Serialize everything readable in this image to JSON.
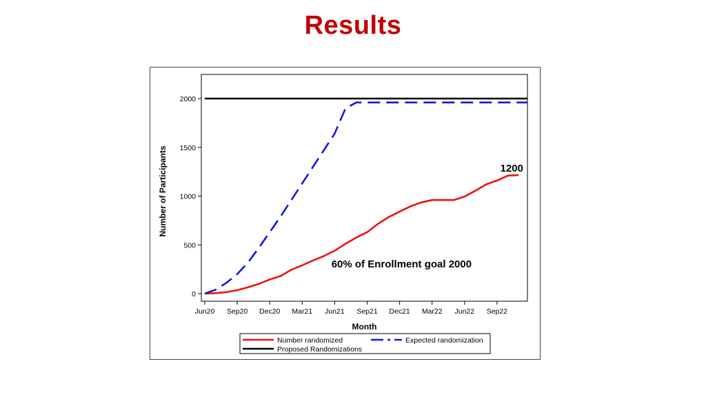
{
  "slide": {
    "title": "Results"
  },
  "chart_data": {
    "type": "line",
    "xlabel": "Month",
    "ylabel": "Number of Participants",
    "ylim": [
      0,
      2200
    ],
    "yticks": [
      0,
      500,
      1000,
      1500,
      2000
    ],
    "xticks": [
      "Jun20",
      "Sep20",
      "Dec20",
      "Mar21",
      "Jun21",
      "Sep21",
      "Dec21",
      "Mar22",
      "Jun22",
      "Sep22"
    ],
    "xlim_months": [
      0,
      30
    ],
    "grid": false,
    "legend_position": "bottom",
    "series": [
      {
        "name": "Number randomized",
        "color": "#ee1111",
        "style": "solid",
        "points": [
          [
            0,
            0
          ],
          [
            1,
            5
          ],
          [
            2,
            15
          ],
          [
            3,
            35
          ],
          [
            4,
            65
          ],
          [
            5,
            100
          ],
          [
            6,
            145
          ],
          [
            7,
            180
          ],
          [
            8,
            245
          ],
          [
            9,
            290
          ],
          [
            10,
            340
          ],
          [
            11,
            385
          ],
          [
            12,
            440
          ],
          [
            13,
            510
          ],
          [
            14,
            575
          ],
          [
            15,
            630
          ],
          [
            16,
            715
          ],
          [
            17,
            785
          ],
          [
            18,
            840
          ],
          [
            19,
            895
          ],
          [
            20,
            935
          ],
          [
            21,
            960
          ],
          [
            22,
            960
          ],
          [
            23,
            960
          ],
          [
            24,
            995
          ],
          [
            25,
            1055
          ],
          [
            26,
            1120
          ],
          [
            27,
            1160
          ],
          [
            28,
            1210
          ],
          [
            29,
            1215
          ]
        ]
      },
      {
        "name": "Expected randomization",
        "color": "#1515e6",
        "style": "dashed",
        "points": [
          [
            0,
            0
          ],
          [
            1,
            40
          ],
          [
            2,
            110
          ],
          [
            3,
            200
          ],
          [
            4,
            320
          ],
          [
            5,
            470
          ],
          [
            6,
            630
          ],
          [
            7,
            790
          ],
          [
            8,
            960
          ],
          [
            9,
            1130
          ],
          [
            10,
            1300
          ],
          [
            11,
            1470
          ],
          [
            12,
            1640
          ],
          [
            13,
            1900
          ],
          [
            14,
            1960
          ],
          [
            30,
            1960
          ]
        ]
      },
      {
        "name": "Proposed Randomizations",
        "color": "#000000",
        "style": "solid",
        "points": [
          [
            0,
            2000
          ],
          [
            30,
            2000
          ]
        ]
      }
    ],
    "annotations": [
      {
        "text": "1200",
        "x": 27.3,
        "y": 1250
      },
      {
        "text": "60% of Enrollment goal 2000",
        "x": 11.7,
        "y": 270
      }
    ]
  }
}
